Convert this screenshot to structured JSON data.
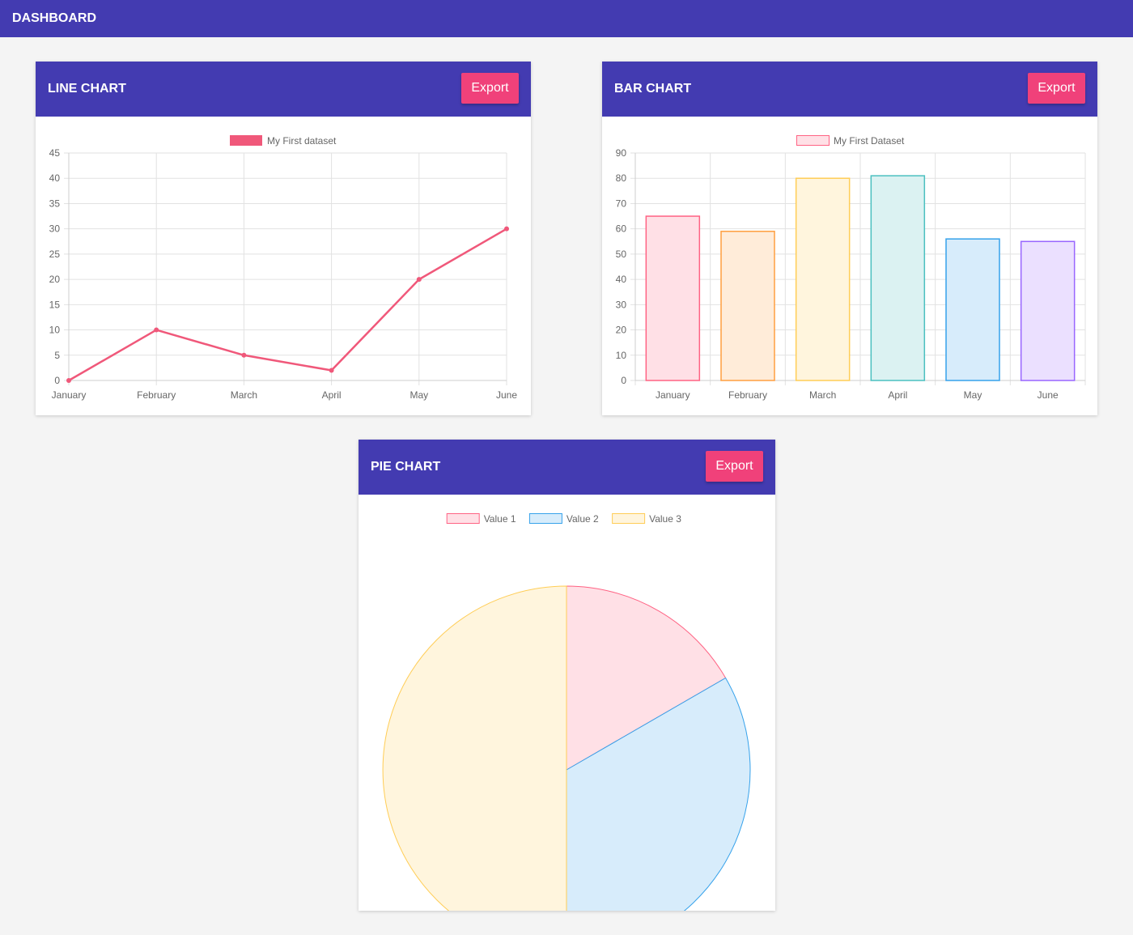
{
  "app": {
    "title": "DASHBOARD"
  },
  "cards": {
    "line": {
      "title": "LINE CHART",
      "export_label": "Export"
    },
    "bar": {
      "title": "BAR CHART",
      "export_label": "Export"
    },
    "pie": {
      "title": "PIE CHART",
      "export_label": "Export"
    }
  },
  "chart_data": [
    {
      "type": "line",
      "categories": [
        "January",
        "February",
        "March",
        "April",
        "May",
        "June"
      ],
      "series": [
        {
          "name": "My First dataset",
          "values": [
            0,
            10,
            5,
            2,
            20,
            30
          ],
          "color": "#f0587a"
        }
      ],
      "ylim": [
        0,
        45
      ],
      "yticks": [
        0,
        5,
        10,
        15,
        20,
        25,
        30,
        35,
        40,
        45
      ],
      "grid": true,
      "legend": "top"
    },
    {
      "type": "bar",
      "categories": [
        "January",
        "February",
        "March",
        "April",
        "May",
        "June"
      ],
      "series": [
        {
          "name": "My First Dataset",
          "values": [
            65,
            59,
            80,
            81,
            56,
            55
          ]
        }
      ],
      "colors": {
        "borders": [
          "#ff6384",
          "#ff9f40",
          "#ffcd56",
          "#4bc0c0",
          "#36a2eb",
          "#9966ff"
        ],
        "fills": [
          "#ffe0e6",
          "#ffecd9",
          "#fff5dd",
          "#dbf2f2",
          "#d7ecfb",
          "#ebe0ff"
        ]
      },
      "ylim": [
        0,
        90
      ],
      "yticks": [
        0,
        10,
        20,
        30,
        40,
        50,
        60,
        70,
        80,
        90
      ],
      "grid": true,
      "legend": "top"
    },
    {
      "type": "pie",
      "categories": [
        "Value 1",
        "Value 2",
        "Value 3"
      ],
      "values": [
        50,
        100,
        150
      ],
      "colors": {
        "borders": [
          "#ff6384",
          "#36a2eb",
          "#ffcd56"
        ],
        "fills": [
          "#ffe0e6",
          "#d7ecfb",
          "#fff5dd"
        ]
      },
      "legend": "top"
    }
  ]
}
